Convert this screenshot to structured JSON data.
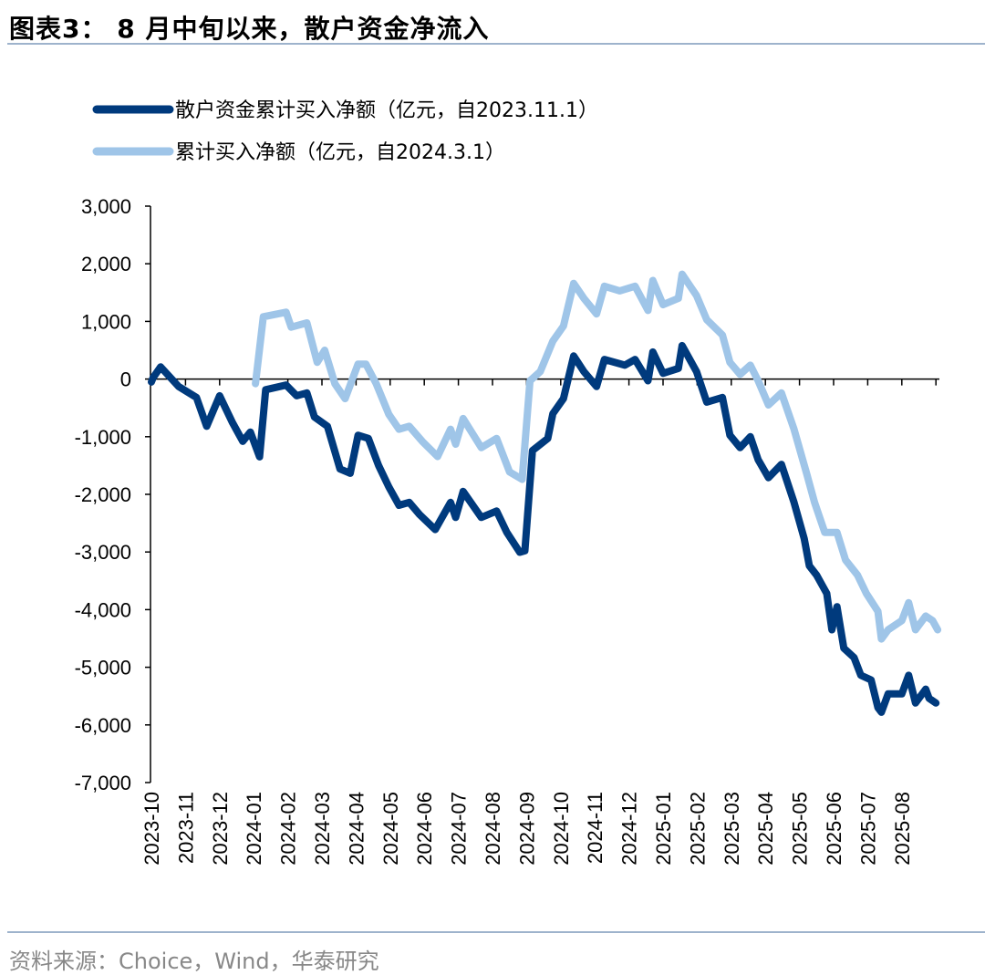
{
  "title": "图表3：  8 月中旬以来，散户资金净流入",
  "source": "资料来源：Choice，Wind，华泰研究",
  "chart_data": {
    "type": "line",
    "title": "图表3：  8 月中旬以来，散户资金净流入",
    "xlabel": "",
    "ylabel": "",
    "ylim": [
      -7000,
      3000
    ],
    "yticks": [
      3000,
      2000,
      1000,
      0,
      -1000,
      -2000,
      -3000,
      -4000,
      -5000,
      -6000,
      -7000
    ],
    "ytick_labels": [
      "3,000",
      "2,000",
      "1,000",
      "0",
      "-1,000",
      "-2,000",
      "-3,000",
      "-4,000",
      "-5,000",
      "-6,000",
      "-7,000"
    ],
    "x_unit": "months since 2023-10",
    "xlim": [
      0,
      23.1
    ],
    "categories": [
      "2023-10",
      "2023-11",
      "2023-12",
      "2024-01",
      "2024-02",
      "2024-03",
      "2024-04",
      "2024-05",
      "2024-06",
      "2024-07",
      "2024-08",
      "2024-09",
      "2024-10",
      "2024-11",
      "2024-12",
      "2025-01",
      "2025-02",
      "2025-03",
      "2025-04",
      "2025-05",
      "2025-06",
      "2025-07",
      "2025-08"
    ],
    "grid": false,
    "legend_position": "top-left",
    "series": [
      {
        "name": "散户资金累计买入净额（亿元，自2023.11.1）",
        "color": "#003a7d",
        "x": [
          0,
          0.05,
          0.27,
          0.8,
          1.32,
          1.62,
          2.0,
          2.38,
          2.68,
          2.9,
          3.17,
          3.35,
          3.95,
          4.26,
          4.56,
          4.78,
          5.16,
          5.53,
          5.83,
          6.06,
          6.36,
          6.66,
          6.96,
          7.26,
          7.56,
          7.86,
          8.32,
          8.77,
          8.92,
          9.14,
          9.67,
          10.12,
          10.42,
          10.8,
          10.95,
          11.17,
          11.62,
          11.77,
          12.08,
          12.38,
          12.68,
          13.05,
          13.28,
          13.88,
          14.18,
          14.56,
          14.7,
          15.0,
          15.45,
          15.56,
          15.98,
          16.28,
          16.74,
          16.96,
          17.26,
          17.56,
          17.79,
          18.09,
          18.47,
          18.84,
          19.14,
          19.29,
          19.5,
          19.8,
          19.95,
          20.1,
          20.3,
          20.6,
          20.8,
          21.1,
          21.3,
          21.4,
          21.6,
          22.0,
          22.2,
          22.4,
          22.7,
          22.8,
          23.0
        ],
        "values": [
          -50,
          26,
          210,
          -130,
          -320,
          -820,
          -290,
          -760,
          -1080,
          -920,
          -1350,
          -185,
          -105,
          -290,
          -240,
          -660,
          -820,
          -1560,
          -1635,
          -975,
          -1030,
          -1500,
          -1870,
          -2190,
          -2140,
          -2350,
          -2610,
          -2140,
          -2400,
          -1950,
          -2400,
          -2290,
          -2660,
          -3005,
          -2980,
          -1240,
          -1030,
          -600,
          -340,
          400,
          130,
          -130,
          340,
          240,
          340,
          -30,
          470,
          100,
          185,
          580,
          130,
          -400,
          -320,
          -975,
          -1190,
          -1000,
          -1400,
          -1710,
          -1480,
          -2140,
          -2770,
          -3240,
          -3400,
          -3720,
          -4350,
          -3950,
          -4670,
          -4830,
          -5140,
          -5220,
          -5700,
          -5780,
          -5460,
          -5460,
          -5140,
          -5620,
          -5380,
          -5540,
          -5620
        ]
      },
      {
        "name": "累计买入净额（亿元，自2024.3.1）",
        "color": "#9fc5e8",
        "x": [
          3.05,
          3.28,
          3.95,
          4.1,
          4.56,
          4.86,
          5.08,
          5.38,
          5.68,
          6.06,
          6.29,
          6.59,
          6.96,
          7.26,
          7.56,
          7.94,
          8.39,
          8.77,
          8.92,
          9.14,
          9.67,
          10.12,
          10.5,
          10.87,
          11.1,
          11.4,
          11.77,
          12.08,
          12.38,
          12.68,
          13.05,
          13.28,
          13.73,
          14.18,
          14.56,
          14.7,
          15.0,
          15.45,
          15.56,
          15.98,
          16.28,
          16.74,
          16.96,
          17.26,
          17.56,
          17.79,
          18.09,
          18.47,
          18.84,
          19.22,
          19.44,
          19.74,
          20.1,
          20.35,
          20.7,
          20.96,
          21.3,
          21.4,
          21.6,
          22.0,
          22.2,
          22.4,
          22.7,
          22.9,
          23.05
        ],
        "values": [
          -80,
          1080,
          1160,
          900,
          975,
          290,
          500,
          -80,
          -340,
          260,
          260,
          -80,
          -610,
          -870,
          -820,
          -1080,
          -1345,
          -870,
          -1130,
          -685,
          -1190,
          -1030,
          -1610,
          -1740,
          -30,
          130,
          660,
          920,
          1660,
          1400,
          1130,
          1610,
          1530,
          1610,
          1190,
          1710,
          1290,
          1400,
          1820,
          1450,
          1030,
          765,
          290,
          80,
          240,
          -30,
          -450,
          -240,
          -870,
          -1660,
          -2140,
          -2660,
          -2660,
          -3140,
          -3400,
          -3720,
          -4030,
          -4510,
          -4350,
          -4190,
          -3880,
          -4350,
          -4110,
          -4190,
          -4350
        ]
      }
    ]
  }
}
